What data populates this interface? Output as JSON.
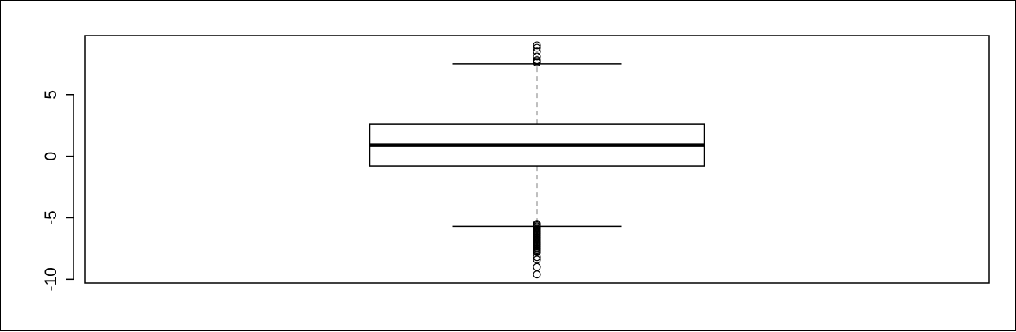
{
  "chart_data": {
    "type": "boxplot",
    "title": "",
    "xlabel": "",
    "ylabel": "",
    "ylim": [
      -10.3,
      9.8
    ],
    "y_ticks": [
      -10,
      -5,
      0,
      5
    ],
    "y_tick_labels": [
      "-10",
      "-5",
      "0",
      "5"
    ],
    "grid": false,
    "legend": "none",
    "boxes": [
      {
        "q1": -0.8,
        "median": 0.9,
        "q3": 2.6,
        "whisker_low": -5.7,
        "whisker_high": 7.5,
        "outliers_high": [
          7.6,
          7.7,
          7.8,
          8.1,
          8.5,
          8.8,
          9.0
        ],
        "outliers_low": [
          -5.5,
          -5.6,
          -5.7,
          -5.8,
          -5.9,
          -6.0,
          -6.1,
          -6.2,
          -6.3,
          -6.4,
          -6.5,
          -6.6,
          -6.7,
          -6.8,
          -6.9,
          -7.0,
          -7.1,
          -7.2,
          -7.3,
          -7.4,
          -7.5,
          -7.6,
          -7.7,
          -7.8,
          -8.2,
          -8.4,
          -9.0,
          -9.6
        ]
      }
    ]
  }
}
